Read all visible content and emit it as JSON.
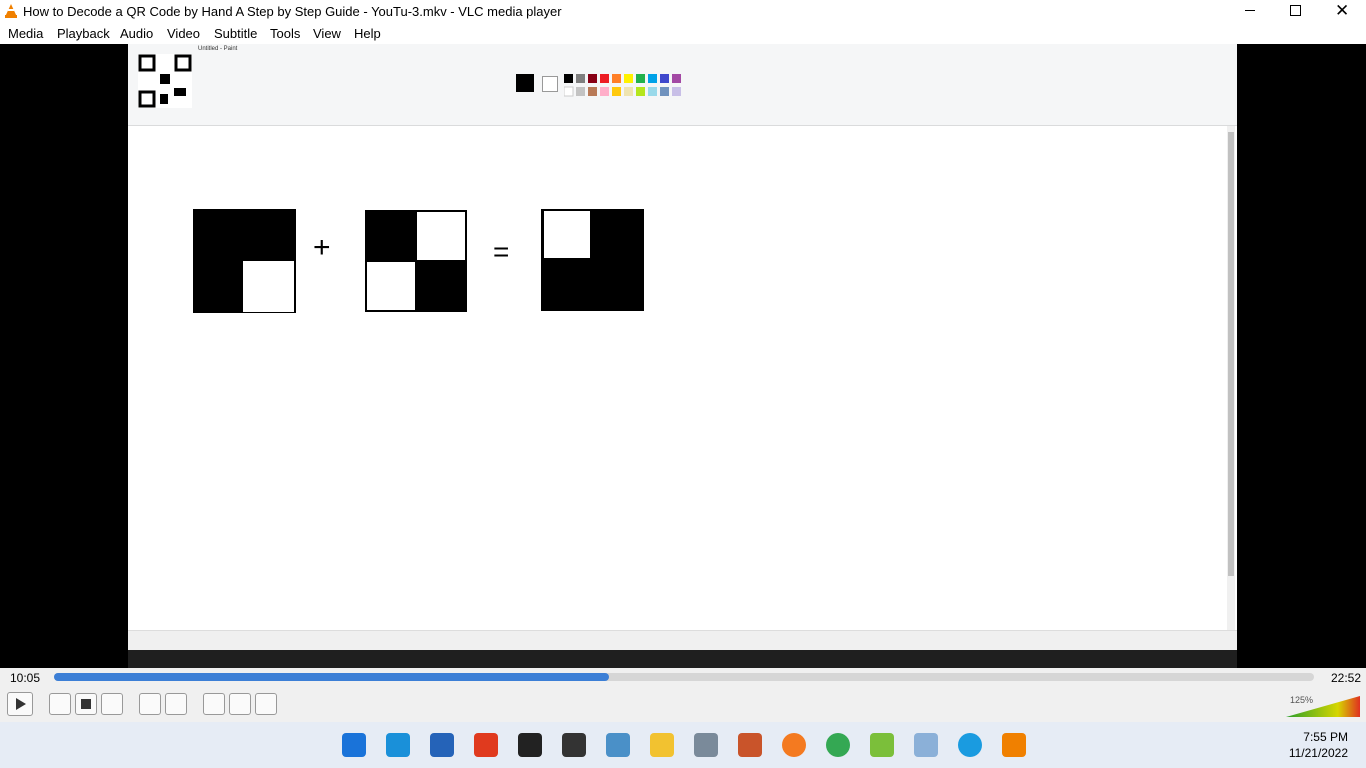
{
  "window": {
    "title": "How to Decode a QR Code by Hand A Step by Step Guide - YouTu-3.mkv - VLC media player"
  },
  "menu": [
    "Media",
    "Playback",
    "Audio",
    "Video",
    "Subtitle",
    "Tools",
    "View",
    "Help"
  ],
  "video": {
    "paint_title": "Untitled - Paint",
    "operators": [
      "+",
      "="
    ]
  },
  "player": {
    "elapsed": "10:05",
    "duration": "22:52",
    "volume": "125%"
  },
  "taskbar": {
    "time": "7:55 PM",
    "date": "11/21/2022"
  }
}
